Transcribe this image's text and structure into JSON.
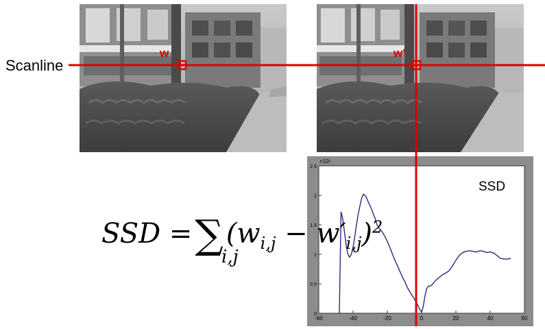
{
  "labels": {
    "scanline": "Scanline",
    "left_patch": "w",
    "right_patch": "w′",
    "plot_title": "SSD"
  },
  "formula": {
    "lhs": "SSD =",
    "sum_symbol": "∑",
    "subscript": "i,j",
    "term_open": "(w",
    "term_sub1": "i,j",
    "term_mid": " − w′",
    "term_sub2": "i,j",
    "term_close": ")",
    "exponent": "2"
  },
  "chart_data": {
    "type": "line",
    "title": "SSD",
    "xlabel": "",
    "ylabel": "",
    "xlim": [
      -60,
      60
    ],
    "ylim": [
      0,
      2.5
    ],
    "y_multiplier": "×10⁵",
    "x_ticks": [
      "-60",
      "-40",
      "-20",
      "0",
      "20",
      "40",
      "60"
    ],
    "y_ticks": [
      "0",
      "0.5",
      "1",
      "1.5",
      "2",
      "2.5"
    ],
    "series": [
      {
        "x": [
          -48,
          -47,
          -46,
          -45,
          -44,
          -43,
          -42,
          -41,
          -40,
          -39,
          -38,
          -37,
          -36,
          -35,
          -34,
          -33,
          -32,
          -31,
          -30,
          -29,
          -28,
          -27,
          -26,
          -25,
          -24,
          -23,
          -22,
          -21,
          -20,
          -19,
          -18,
          -17,
          -16,
          -15,
          -14,
          -13,
          -12,
          -11,
          -10,
          -9,
          -8,
          -7,
          -6,
          -5,
          -4,
          -3,
          -2,
          -1,
          0,
          1,
          2,
          3,
          4,
          5,
          6,
          8,
          10,
          12,
          14,
          16,
          18,
          20,
          22,
          24,
          26,
          28,
          30,
          32,
          34,
          36,
          38,
          40,
          42,
          44,
          46,
          48,
          50,
          52
        ],
        "values": [
          0.0,
          1.72,
          1.6,
          1.38,
          1.15,
          1.0,
          0.95,
          1.0,
          1.12,
          1.3,
          1.5,
          1.68,
          1.82,
          1.95,
          2.02,
          2.0,
          1.95,
          1.88,
          1.82,
          1.75,
          1.67,
          1.6,
          1.5,
          1.45,
          1.42,
          1.38,
          1.33,
          1.28,
          1.22,
          1.15,
          1.08,
          1.0,
          0.93,
          0.86,
          0.8,
          0.73,
          0.67,
          0.6,
          0.55,
          0.48,
          0.42,
          0.37,
          0.32,
          0.28,
          0.23,
          0.18,
          0.12,
          0.06,
          0.02,
          0.12,
          0.3,
          0.42,
          0.46,
          0.46,
          0.48,
          0.55,
          0.6,
          0.65,
          0.68,
          0.72,
          0.8,
          0.9,
          0.98,
          1.03,
          1.05,
          1.06,
          1.05,
          1.04,
          1.06,
          1.05,
          1.03,
          1.04,
          1.02,
          0.98,
          0.93,
          0.92,
          0.92,
          0.93
        ]
      }
    ],
    "colors": {
      "line": "#2a2a7a",
      "frame_bg": "#8c8c8c",
      "plot_bg": "#ffffff",
      "marker": "#e00000"
    }
  }
}
